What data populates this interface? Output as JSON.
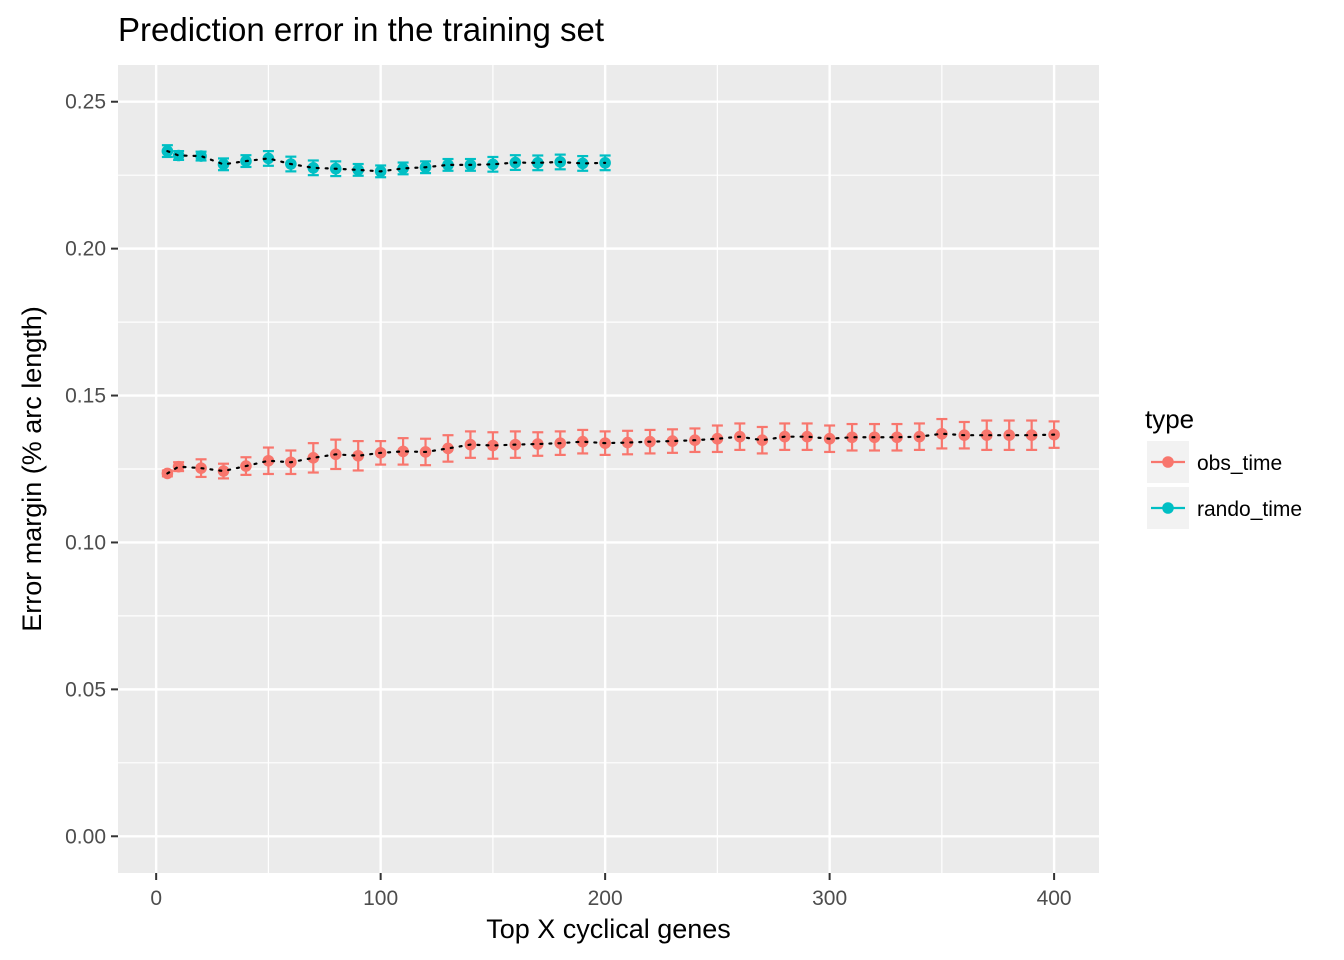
{
  "chart_data": {
    "type": "line",
    "title": "Prediction error in the training set",
    "xlabel": "Top X cyclical genes",
    "ylabel": "Error margin (% arc length)",
    "xlim": [
      -17,
      420
    ],
    "ylim": [
      -0.0125,
      0.2625
    ],
    "x_ticks": [
      0,
      100,
      200,
      300,
      400
    ],
    "x_tick_labels": [
      "0",
      "100",
      "200",
      "300",
      "400"
    ],
    "y_ticks": [
      0.0,
      0.05,
      0.1,
      0.15,
      0.2,
      0.25
    ],
    "y_tick_labels": [
      "0.00",
      "0.05",
      "0.10",
      "0.15",
      "0.20",
      "0.25"
    ],
    "grid": true,
    "background": "#ebebeb",
    "connector_line": "dotted black",
    "legend": {
      "title": "type",
      "position": "right"
    },
    "series": [
      {
        "name": "obs_time",
        "color": "#f8766d",
        "x": [
          5,
          10,
          20,
          30,
          40,
          50,
          60,
          70,
          80,
          90,
          100,
          110,
          120,
          130,
          140,
          150,
          160,
          170,
          180,
          190,
          200,
          210,
          220,
          230,
          240,
          250,
          260,
          270,
          280,
          290,
          300,
          310,
          320,
          330,
          340,
          350,
          360,
          370,
          380,
          390,
          400
        ],
        "y": [
          0.1235,
          0.1258,
          0.1253,
          0.1243,
          0.126,
          0.1278,
          0.1273,
          0.1288,
          0.13,
          0.1295,
          0.1305,
          0.131,
          0.1308,
          0.132,
          0.1333,
          0.133,
          0.1333,
          0.1335,
          0.1338,
          0.1343,
          0.1338,
          0.134,
          0.1343,
          0.1345,
          0.1348,
          0.1353,
          0.136,
          0.1348,
          0.136,
          0.136,
          0.1353,
          0.1358,
          0.1358,
          0.1358,
          0.136,
          0.137,
          0.1365,
          0.1365,
          0.1365,
          0.1365,
          0.1367
        ],
        "err": [
          0.001,
          0.0015,
          0.003,
          0.0025,
          0.003,
          0.0045,
          0.004,
          0.005,
          0.005,
          0.005,
          0.004,
          0.0045,
          0.0045,
          0.0045,
          0.0045,
          0.0045,
          0.0045,
          0.004,
          0.004,
          0.004,
          0.004,
          0.004,
          0.004,
          0.004,
          0.004,
          0.0045,
          0.0045,
          0.0045,
          0.0045,
          0.0045,
          0.0045,
          0.0045,
          0.0045,
          0.0045,
          0.0045,
          0.005,
          0.0045,
          0.005,
          0.005,
          0.005,
          0.0045
        ]
      },
      {
        "name": "rando_time",
        "color": "#00bfc4",
        "x": [
          5,
          10,
          20,
          30,
          40,
          50,
          60,
          70,
          80,
          90,
          100,
          110,
          120,
          130,
          140,
          150,
          160,
          170,
          180,
          190,
          200
        ],
        "y": [
          0.2332,
          0.2317,
          0.2315,
          0.2287,
          0.2298,
          0.2307,
          0.2288,
          0.2275,
          0.2272,
          0.2268,
          0.2263,
          0.2273,
          0.2277,
          0.2285,
          0.2285,
          0.2287,
          0.2293,
          0.2292,
          0.2295,
          0.229,
          0.2292
        ],
        "err": [
          0.002,
          0.0015,
          0.0015,
          0.002,
          0.002,
          0.0025,
          0.0025,
          0.0025,
          0.0025,
          0.002,
          0.002,
          0.002,
          0.002,
          0.002,
          0.002,
          0.0025,
          0.0025,
          0.0025,
          0.0025,
          0.0025,
          0.0025
        ]
      }
    ]
  }
}
